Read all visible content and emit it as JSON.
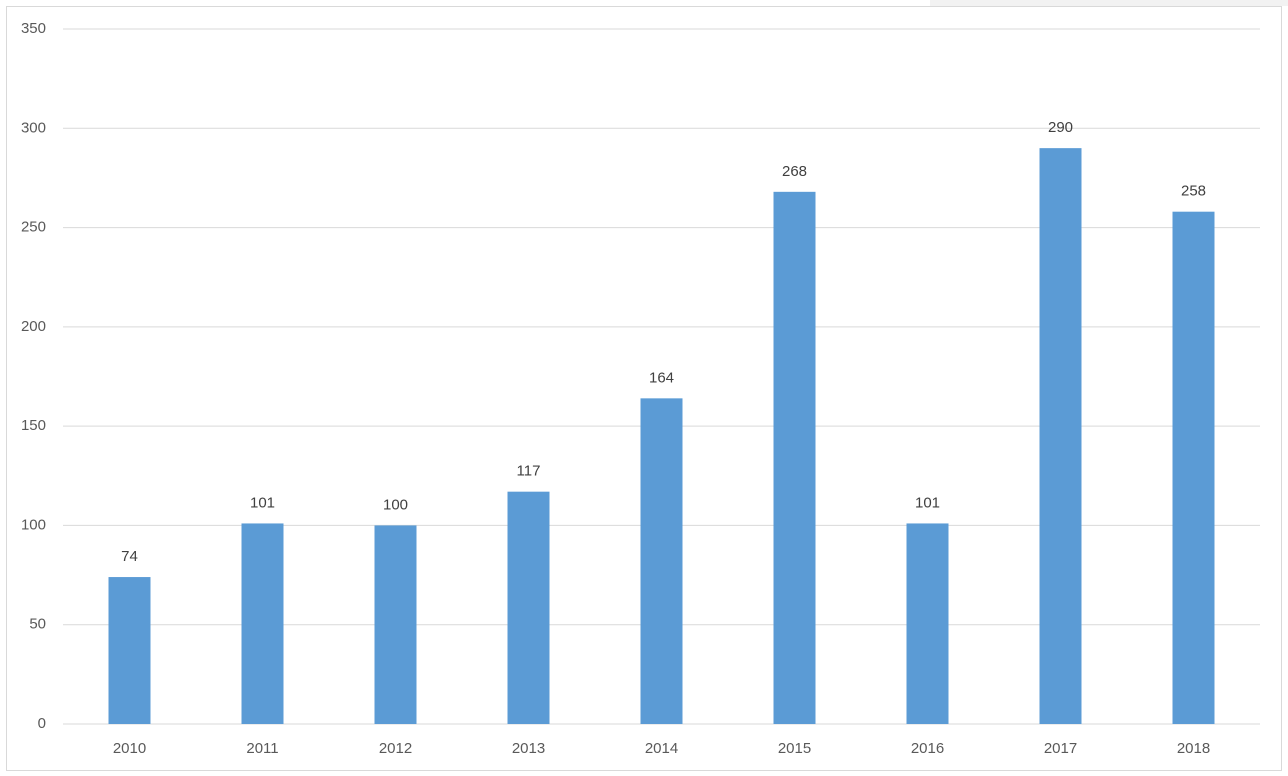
{
  "chart_data": {
    "type": "bar",
    "categories": [
      "2010",
      "2011",
      "2012",
      "2013",
      "2014",
      "2015",
      "2016",
      "2017",
      "2018"
    ],
    "values": [
      74,
      101,
      100,
      117,
      164,
      268,
      101,
      290,
      258
    ],
    "color": "#5b9bd5",
    "ylim": [
      0,
      350
    ],
    "yticks": [
      0,
      50,
      100,
      150,
      200,
      250,
      300,
      350
    ],
    "grid": true,
    "data_labels": true
  }
}
